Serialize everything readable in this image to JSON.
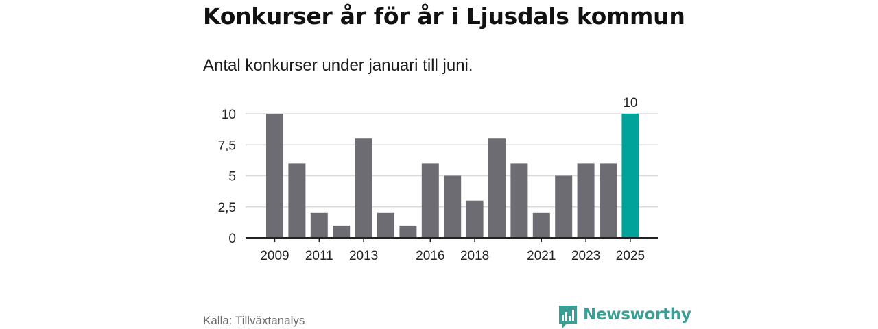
{
  "header": {
    "title": "Konkurser år för år i Ljusdals kommun",
    "subtitle": "Antal konkurser under januari till juni."
  },
  "footer": {
    "source": "Källa: Tillväxtanalys",
    "brand": "Newsworthy",
    "brand_icon": "newsworthy-logo-icon",
    "brand_color": "#3a9e95"
  },
  "chart_data": {
    "type": "bar",
    "categories": [
      "2009",
      "2010",
      "2011",
      "2012",
      "2013",
      "2014",
      "2015",
      "2016",
      "2017",
      "2018",
      "2019",
      "2020",
      "2021",
      "2022",
      "2023",
      "2024",
      "2025"
    ],
    "values": [
      10,
      6,
      2,
      1,
      8,
      2,
      1,
      6,
      5,
      3,
      8,
      6,
      2,
      5,
      6,
      6,
      10
    ],
    "x_tick_labels": [
      "2009",
      "2011",
      "2013",
      "2016",
      "2018",
      "2021",
      "2023",
      "2025"
    ],
    "y_ticks": [
      0,
      2.5,
      5,
      7.5,
      10
    ],
    "y_tick_labels": [
      "0",
      "2,5",
      "5",
      "7,5",
      "10"
    ],
    "ylim": [
      0,
      10
    ],
    "grid": true,
    "highlight": {
      "category": "2025",
      "label": "10"
    },
    "colors": {
      "bar": "#6d6c72",
      "highlight": "#00a39a",
      "grid": "#d9d9d9",
      "axis": "#222222"
    },
    "title": "Konkurser år för år i Ljusdals kommun",
    "xlabel": "",
    "ylabel": ""
  }
}
